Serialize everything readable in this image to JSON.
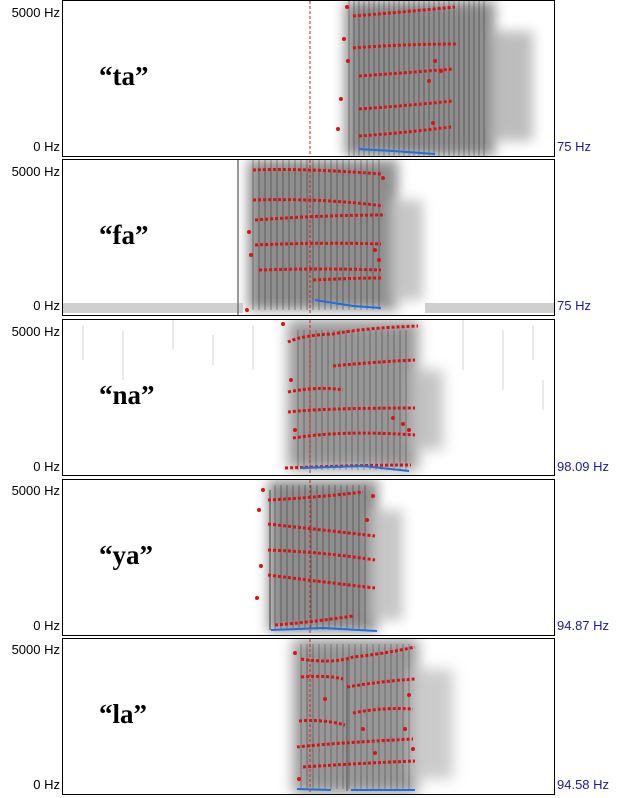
{
  "axis": {
    "top_label": "5000 Hz",
    "bottom_label": "0 Hz"
  },
  "colors": {
    "formant": "#dd1111",
    "pitch": "#1e6fe0",
    "cursor": "#cc2222",
    "pitch_label": "#1a1aa8"
  },
  "panels": [
    {
      "id": "ta",
      "word": "“ta”",
      "pitch_floor": "75 Hz"
    },
    {
      "id": "fa",
      "word": "“fa”",
      "pitch_floor": "75 Hz"
    },
    {
      "id": "na",
      "word": "“na”",
      "pitch_floor": "98.09 Hz"
    },
    {
      "id": "ya",
      "word": "“ya”",
      "pitch_floor": "94.87 Hz"
    },
    {
      "id": "la",
      "word": "“la”",
      "pitch_floor": "94.58 Hz"
    }
  ]
}
